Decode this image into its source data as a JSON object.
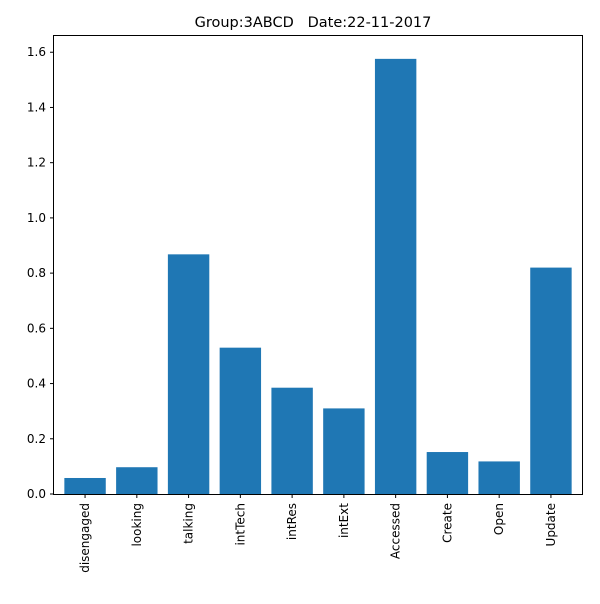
{
  "chart_data": {
    "type": "bar",
    "title": "Group:3ABCD   Date:22-11-2017",
    "xlabel": "",
    "ylabel": "",
    "categories": [
      "disengaged",
      "looking",
      "talking",
      "intTech",
      "intRes",
      "intExt",
      "Accessed",
      "Create",
      "Open",
      "Update"
    ],
    "values": [
      0.058,
      0.097,
      0.868,
      0.53,
      0.385,
      0.31,
      1.576,
      0.152,
      0.118,
      0.82
    ],
    "ylim": [
      0,
      1.6588
    ],
    "yticks": [
      "0.0",
      "0.2",
      "0.4",
      "0.6",
      "0.8",
      "1.0",
      "1.2",
      "1.4",
      "1.6"
    ],
    "bar_color": "#1f77b4",
    "grid": false,
    "legend": "none"
  }
}
